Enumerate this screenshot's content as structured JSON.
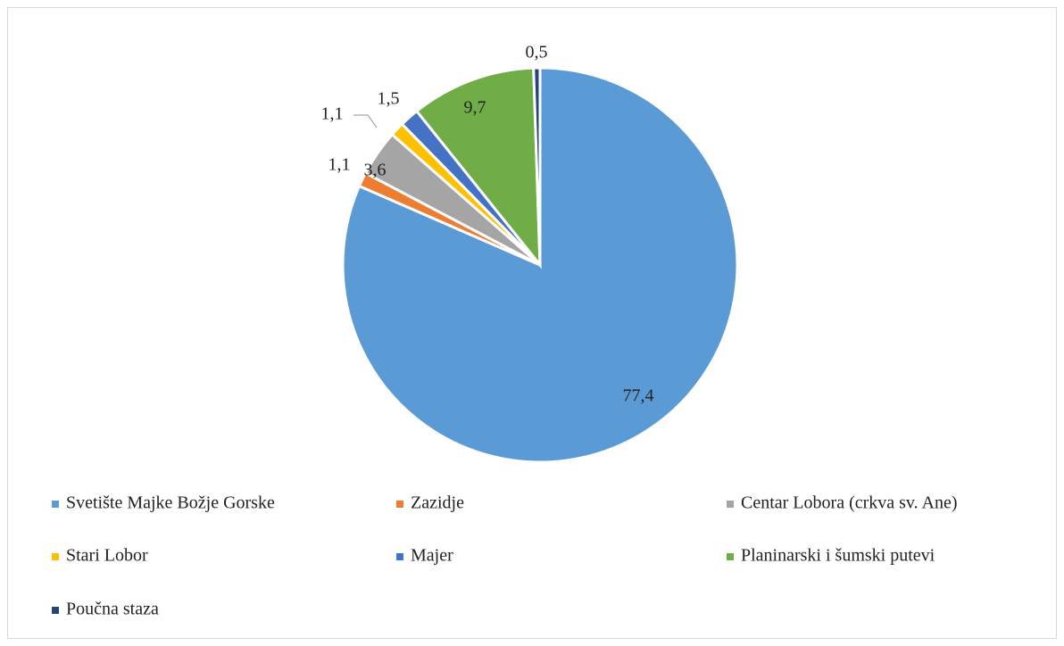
{
  "chart_data": {
    "type": "pie",
    "categories": [
      "Svetište Majke Božje Gorske",
      "Zazidje",
      "Centar Lobora (crkva sv. Ane)",
      "Stari Lobor",
      "Majer",
      "Planinarski i šumski putevi",
      "Poučna staza"
    ],
    "values": [
      77.4,
      1.1,
      3.6,
      1.1,
      1.5,
      9.7,
      0.5
    ],
    "value_labels": [
      "77,4",
      "1,1",
      "3,6",
      "1,1",
      "1,5",
      "9,7",
      "0,5"
    ],
    "colors": [
      "#5b9bd5",
      "#ed7d31",
      "#a5a5a5",
      "#ffc000",
      "#4472c4",
      "#70ad47",
      "#264478"
    ],
    "legend": "bottom"
  }
}
